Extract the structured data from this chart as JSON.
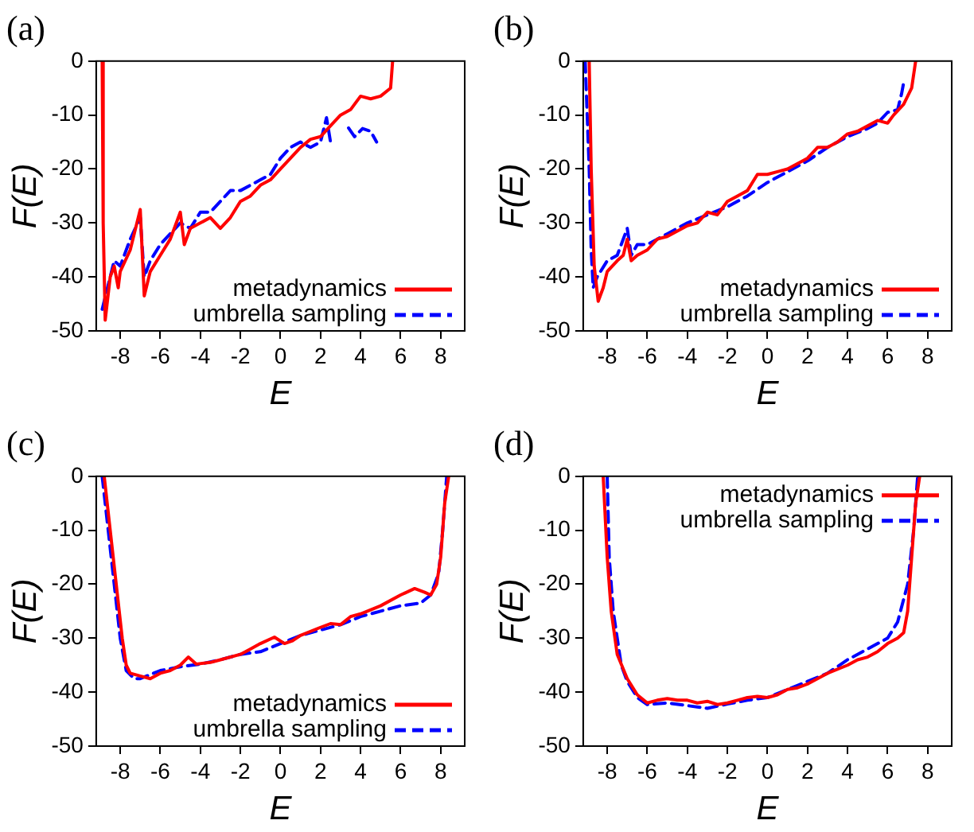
{
  "chart_data": [
    {
      "type": "line",
      "title": "(a)",
      "xlabel": "E",
      "ylabel": "F(E)",
      "xlim": [
        -9.2,
        9.2
      ],
      "ylim": [
        -50,
        0
      ],
      "xticks": [
        -8,
        -6,
        -4,
        -2,
        0,
        2,
        4,
        6,
        8
      ],
      "yticks": [
        -50,
        -40,
        -30,
        -20,
        -10,
        0
      ],
      "legend": "bottom right",
      "marker": "none",
      "series": [
        {
          "name": "metadynamics",
          "color": "#ff0000",
          "line_style": "solid",
          "x": [
            -8.9,
            -8.85,
            -8.75,
            -8.5,
            -8.3,
            -8.1,
            -8,
            -7.5,
            -7,
            -6.8,
            -6.5,
            -6,
            -5.5,
            -5,
            -4.8,
            -4.5,
            -4,
            -3.5,
            -3,
            -2.5,
            -2,
            -1.5,
            -1,
            -0.5,
            0,
            0.5,
            1,
            1.5,
            2,
            2.5,
            3,
            3.5,
            4,
            4.5,
            5,
            5.5,
            5.6
          ],
          "values": [
            0,
            -30,
            -48,
            -40,
            -38,
            -42,
            -39,
            -35,
            -27.5,
            -43.5,
            -39,
            -36,
            -33,
            -28,
            -34,
            -31,
            -30,
            -29,
            -31,
            -29,
            -26,
            -25,
            -23,
            -22,
            -20,
            -18,
            -16,
            -14.5,
            -14,
            -12,
            -10,
            -9,
            -6.5,
            -7,
            -6.5,
            -5,
            0
          ]
        },
        {
          "name": "umbrella sampling",
          "color": "#0000ff",
          "line_style": "dashed",
          "x": [
            -8.9,
            -8.7,
            -8.3,
            -8,
            -7.5,
            -7,
            -6.8,
            -6.5,
            -6,
            -5.5,
            -5,
            -4.5,
            -4,
            -3.5,
            -3,
            -2.5,
            -2,
            -1.5,
            -1,
            -0.5,
            0,
            0.5,
            1,
            1.5,
            2,
            2.3,
            2.5,
            2.9,
            3.4,
            3.7,
            4.1,
            4.5,
            4.8
          ],
          "values": [
            -46,
            -43,
            -37,
            -38,
            -33,
            -29,
            -40,
            -37,
            -34,
            -32,
            -30,
            -31,
            -28,
            -28,
            -26,
            -24,
            -24,
            -23,
            -22,
            -21,
            -18,
            -16,
            -15,
            -16,
            -15,
            -10.5,
            -15,
            null,
            -12.4,
            -14,
            -12.5,
            -13,
            -15
          ]
        }
      ]
    },
    {
      "type": "line",
      "title": "(b)",
      "xlabel": "E",
      "ylabel": "F(E)",
      "xlim": [
        -9.2,
        9.2
      ],
      "ylim": [
        -50,
        0
      ],
      "xticks": [
        -8,
        -6,
        -4,
        -2,
        0,
        2,
        4,
        6,
        8
      ],
      "yticks": [
        -50,
        -40,
        -30,
        -20,
        -10,
        0
      ],
      "legend": "bottom right",
      "marker": "none",
      "series": [
        {
          "name": "metadynamics",
          "color": "#ff0000",
          "line_style": "solid",
          "x": [
            -8.9,
            -8.8,
            -8.65,
            -8.45,
            -8.2,
            -8,
            -7.5,
            -7.2,
            -7,
            -6.8,
            -6.5,
            -6,
            -5.5,
            -5,
            -4.5,
            -4,
            -3.5,
            -3,
            -2.5,
            -2,
            -1.5,
            -1,
            -0.5,
            0,
            0.5,
            1,
            1.5,
            2,
            2.5,
            3,
            3.5,
            4,
            4.5,
            5,
            5.5,
            6,
            6.3,
            6.8,
            7.2,
            7.4
          ],
          "values": [
            0,
            -20,
            -38,
            -44.5,
            -42,
            -39,
            -37,
            -36,
            -33,
            -37,
            -36,
            -35,
            -33,
            -32.5,
            -31.5,
            -30.5,
            -30,
            -28,
            -28.5,
            -26,
            -25,
            -24,
            -21,
            -21,
            -20.5,
            -20,
            -19,
            -18,
            -16,
            -16,
            -15,
            -13.5,
            -13,
            -12,
            -11,
            -11.5,
            -10,
            -8,
            -5,
            0
          ]
        },
        {
          "name": "umbrella sampling",
          "color": "#0000ff",
          "line_style": "dashed",
          "x": [
            -9.1,
            -8.9,
            -8.8,
            -8.7,
            -8.5,
            -8,
            -7.5,
            -7,
            -6.8,
            -6.5,
            -6,
            -5.5,
            -5,
            -4,
            -3,
            -2,
            -1,
            0,
            1,
            2,
            3,
            4,
            5,
            5.5,
            6,
            6.5,
            6.7,
            6.8
          ],
          "values": [
            0,
            -20,
            -35,
            -42,
            -40,
            -37,
            -36,
            -31,
            -36,
            -34,
            -34,
            -33,
            -32,
            -30,
            -28.5,
            -27,
            -25,
            -22.5,
            -20.5,
            -18.5,
            -16,
            -14,
            -12.5,
            -11.5,
            -9.5,
            -9,
            -6,
            -4
          ]
        }
      ]
    },
    {
      "type": "line",
      "title": "(c)",
      "xlabel": "E",
      "ylabel": "F(E)",
      "xlim": [
        -9.2,
        9.2
      ],
      "ylim": [
        -50,
        0
      ],
      "xticks": [
        -8,
        -6,
        -4,
        -2,
        0,
        2,
        4,
        6,
        8
      ],
      "yticks": [
        -50,
        -40,
        -30,
        -20,
        -10,
        0
      ],
      "legend": "bottom right",
      "marker": "none",
      "series": [
        {
          "name": "metadynamics",
          "color": "#ff0000",
          "line_style": "solid",
          "x": [
            -8.8,
            -8.5,
            -8.2,
            -7.9,
            -7.7,
            -7.5,
            -7,
            -6.5,
            -6,
            -5.5,
            -5,
            -4.6,
            -4.2,
            -3.5,
            -3,
            -2,
            -1.5,
            -1,
            -0.3,
            0.2,
            0.6,
            1,
            2,
            2.5,
            3,
            3.5,
            4,
            5,
            6,
            6.7,
            7.2,
            7.5,
            7.8,
            8,
            8.2,
            8.4
          ],
          "values": [
            0,
            -10,
            -20,
            -30,
            -35,
            -36.5,
            -37,
            -37.5,
            -36.5,
            -36,
            -35,
            -33.5,
            -34.8,
            -34.5,
            -34,
            -33,
            -32,
            -31,
            -29.8,
            -31,
            -30.5,
            -29.5,
            -28,
            -27.3,
            -27.5,
            -26,
            -25.5,
            -24,
            -22,
            -20.8,
            -21.5,
            -22,
            -20,
            -15,
            -5,
            0
          ]
        },
        {
          "name": "umbrella sampling",
          "color": "#0000ff",
          "line_style": "dashed",
          "x": [
            -8.9,
            -8.6,
            -8.3,
            -8,
            -7.7,
            -7.3,
            -7,
            -6,
            -5,
            -4,
            -3,
            -2,
            -1,
            0,
            1,
            2,
            3,
            4,
            5,
            6,
            7,
            7.5,
            7.9,
            8.1,
            8.3
          ],
          "values": [
            0,
            -10,
            -20,
            -30,
            -36,
            -37.5,
            -37.5,
            -36,
            -35.3,
            -34.8,
            -34,
            -33,
            -32.5,
            -31,
            -29.5,
            -28.5,
            -27.5,
            -26,
            -25,
            -24,
            -23.5,
            -22,
            -18,
            -10,
            0
          ]
        }
      ]
    },
    {
      "type": "line",
      "title": "(d)",
      "xlabel": "E",
      "ylabel": "F(E)",
      "xlim": [
        -9.2,
        9.2
      ],
      "ylim": [
        -50,
        0
      ],
      "xticks": [
        -8,
        -6,
        -4,
        -2,
        0,
        2,
        4,
        6,
        8
      ],
      "yticks": [
        -50,
        -40,
        -30,
        -20,
        -10,
        0
      ],
      "legend": "top right",
      "marker": "none",
      "series": [
        {
          "name": "metadynamics",
          "color": "#ff0000",
          "line_style": "solid",
          "x": [
            -8.2,
            -8,
            -7.8,
            -7.5,
            -7,
            -6.5,
            -6,
            -5.5,
            -5,
            -4.5,
            -4,
            -3.5,
            -3,
            -2.5,
            -2,
            -1.5,
            -1,
            -0.5,
            0,
            0.5,
            1,
            1.5,
            2,
            3,
            4,
            4.5,
            5,
            5.5,
            6,
            6.5,
            6.8,
            7,
            7.2,
            7.4,
            7.6
          ],
          "values": [
            0,
            -15,
            -25,
            -33,
            -37.5,
            -40.5,
            -42,
            -41.5,
            -41.2,
            -41.5,
            -41.5,
            -42,
            -41.7,
            -42.3,
            -42,
            -41.5,
            -41,
            -40.8,
            -41,
            -40.5,
            -39.5,
            -39.2,
            -38.5,
            -36.5,
            -35,
            -34,
            -33.5,
            -32.5,
            -31,
            -30,
            -29,
            -25,
            -15,
            -5,
            0
          ]
        },
        {
          "name": "umbrella sampling",
          "color": "#0000ff",
          "line_style": "dashed",
          "x": [
            -8,
            -7.9,
            -7.7,
            -7.3,
            -7,
            -6.5,
            -6,
            -5,
            -4,
            -3,
            -2,
            -1,
            0,
            1,
            2,
            3,
            4,
            5,
            6,
            6.5,
            7,
            7.3,
            7.5
          ],
          "values": [
            0,
            -15,
            -25,
            -35,
            -38,
            -41,
            -42.3,
            -42,
            -42.5,
            -43,
            -42.2,
            -41.5,
            -41,
            -39.5,
            -38,
            -36.5,
            -34,
            -32,
            -30,
            -27,
            -20,
            -10,
            0
          ]
        }
      ]
    }
  ]
}
